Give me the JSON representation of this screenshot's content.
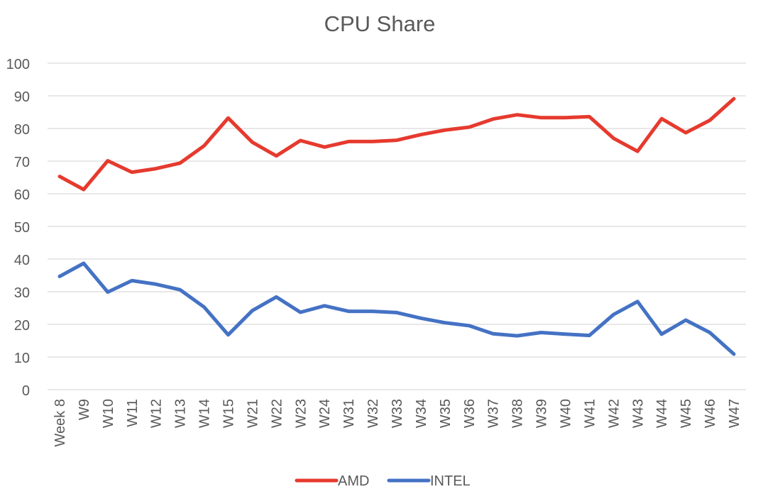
{
  "chart_data": {
    "type": "line",
    "title": "CPU Share",
    "xlabel": "",
    "ylabel": "",
    "ylim": [
      0,
      100
    ],
    "yticks": [
      0,
      10,
      20,
      30,
      40,
      50,
      60,
      70,
      80,
      90,
      100
    ],
    "grid": true,
    "legend_position": "bottom",
    "categories": [
      "Week 8",
      "W9",
      "W10",
      "W11",
      "W12",
      "W13",
      "W14",
      "W15",
      "W21",
      "W22",
      "W23",
      "W24",
      "W31",
      "W32",
      "W33",
      "W34",
      "W35",
      "W36",
      "W37",
      "W38",
      "W39",
      "W40",
      "W41",
      "W42",
      "W43",
      "W44",
      "W45",
      "W46",
      "W47"
    ],
    "series": [
      {
        "name": "AMD",
        "color": "#e63a2e",
        "values": [
          65.3,
          61.3,
          70.1,
          66.6,
          67.7,
          69.4,
          74.7,
          83.2,
          75.8,
          71.6,
          76.3,
          74.3,
          76.0,
          76.0,
          76.4,
          78.1,
          79.5,
          80.4,
          82.9,
          84.2,
          83.3,
          83.3,
          83.6,
          77.0,
          73.0,
          83.0,
          78.7,
          82.5,
          89.1
        ]
      },
      {
        "name": "INTEL",
        "color": "#4472c4",
        "values": [
          34.7,
          38.7,
          29.9,
          33.4,
          32.3,
          30.6,
          25.3,
          16.8,
          24.2,
          28.4,
          23.7,
          25.7,
          24.0,
          24.0,
          23.6,
          21.9,
          20.5,
          19.6,
          17.1,
          16.5,
          17.5,
          17.0,
          16.6,
          23.0,
          27.0,
          17.0,
          21.3,
          17.5,
          10.9
        ]
      }
    ]
  }
}
